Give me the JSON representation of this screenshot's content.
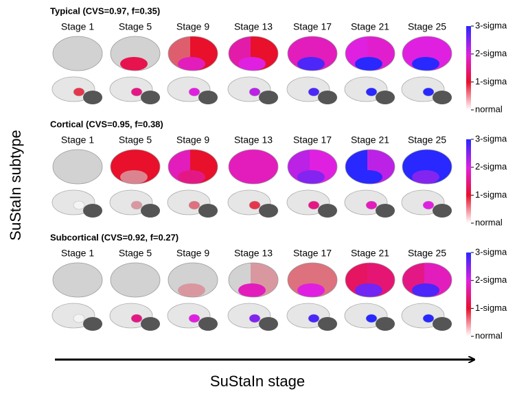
{
  "y_label": "SuStaIn subtype",
  "x_label": "SuStaIn stage",
  "panels": [
    {
      "title": "Typical (CVS=0.97, f=0.35)",
      "stages": [
        "Stage 1",
        "Stage 5",
        "Stage 9",
        "Stage 13",
        "Stage 17",
        "Stage 21",
        "Stage 25"
      ],
      "colorbar": [
        "3-sigma",
        "2-sigma",
        "1-sigma",
        "normal"
      ]
    },
    {
      "title": "Cortical (CVS=0.95, f=0.38)",
      "stages": [
        "Stage 1",
        "Stage 5",
        "Stage 9",
        "Stage 13",
        "Stage 17",
        "Stage 21",
        "Stage 25"
      ],
      "colorbar": [
        "3-sigma",
        "2-sigma",
        "1-sigma",
        "normal"
      ]
    },
    {
      "title": "Subcortical (CVS=0.92, f=0.27)",
      "stages": [
        "Stage 1",
        "Stage 5",
        "Stage 9",
        "Stage 13",
        "Stage 17",
        "Stage 21",
        "Stage 25"
      ],
      "colorbar": [
        "3-sigma",
        "2-sigma",
        "1-sigma",
        "normal"
      ]
    }
  ]
}
